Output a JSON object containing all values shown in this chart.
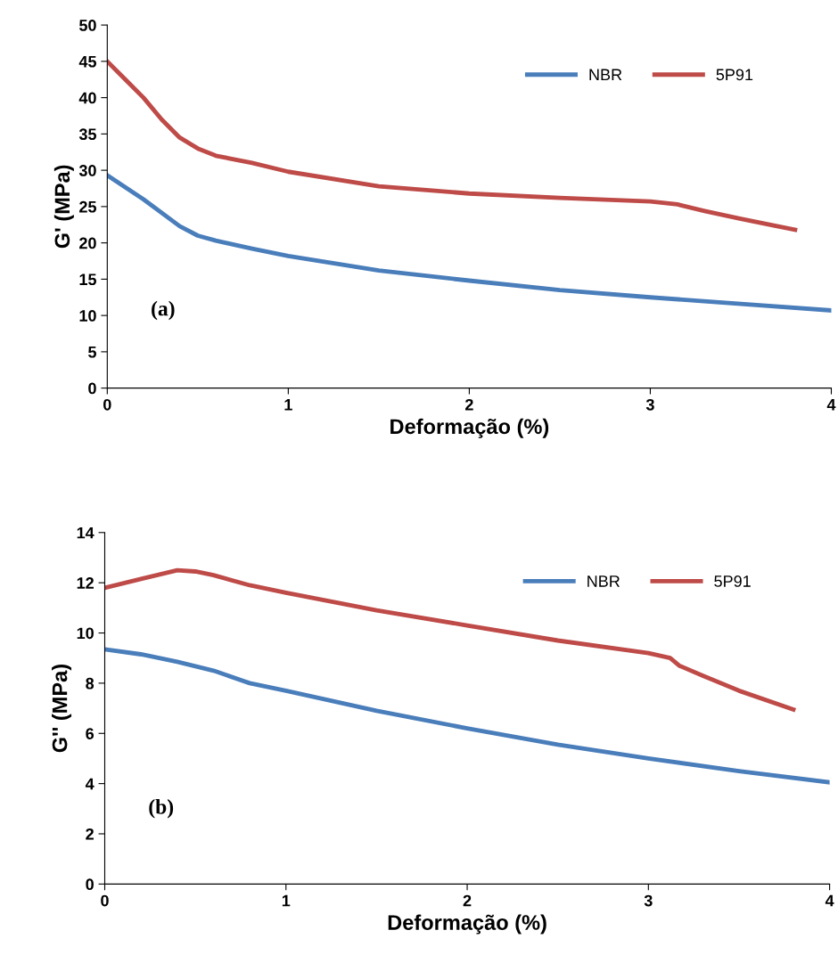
{
  "chart_data": [
    {
      "type": "line",
      "xlabel": "Deformação (%)",
      "ylabel": "G' (MPa)",
      "annotations": [
        "(a)"
      ],
      "xlim": [
        0,
        4
      ],
      "xticks": [
        0,
        1,
        2,
        3,
        4
      ],
      "ylim": [
        0,
        50
      ],
      "yticks": [
        0,
        5,
        10,
        15,
        20,
        25,
        30,
        35,
        40,
        45,
        50
      ],
      "grid": false,
      "legend": "top right",
      "marker": "none",
      "line_style": "solid",
      "series": [
        {
          "name": "NBR",
          "color": "#4a7ebb",
          "x": [
            0,
            0.2,
            0.4,
            0.5,
            0.6,
            0.8,
            1,
            1.5,
            2,
            2.5,
            3,
            3.5,
            4
          ],
          "values": [
            29.3,
            26,
            22.3,
            21,
            20.3,
            19.2,
            18.2,
            16.2,
            14.8,
            13.5,
            12.5,
            11.6,
            10.7
          ]
        },
        {
          "name": "5P91",
          "color": "#be4b48",
          "x": [
            0,
            0.1,
            0.2,
            0.3,
            0.4,
            0.5,
            0.6,
            0.8,
            1,
            1.5,
            2,
            2.5,
            3,
            3.15,
            3.3,
            3.5,
            3.8
          ],
          "values": [
            45,
            42.5,
            40,
            37,
            34.5,
            33,
            32,
            31,
            29.8,
            27.8,
            26.8,
            26.2,
            25.7,
            25.3,
            24.4,
            23.3,
            21.8
          ]
        }
      ]
    },
    {
      "type": "line",
      "xlabel": "Deformação (%)",
      "ylabel": "G'' (MPa)",
      "annotations": [
        "(b)"
      ],
      "xlim": [
        0,
        4
      ],
      "xticks": [
        0,
        1,
        2,
        3,
        4
      ],
      "ylim": [
        0,
        14
      ],
      "yticks": [
        0,
        2,
        4,
        6,
        8,
        10,
        12,
        14
      ],
      "grid": false,
      "legend": "top right",
      "marker": "none",
      "line_style": "solid",
      "series": [
        {
          "name": "NBR",
          "color": "#4a7ebb",
          "x": [
            0,
            0.2,
            0.4,
            0.6,
            0.8,
            1,
            1.5,
            2,
            2.5,
            3,
            3.5,
            4
          ],
          "values": [
            9.35,
            9.15,
            8.85,
            8.5,
            8.0,
            7.7,
            6.9,
            6.2,
            5.55,
            5.0,
            4.5,
            4.05
          ]
        },
        {
          "name": "5P91",
          "color": "#be4b48",
          "x": [
            0,
            0.2,
            0.4,
            0.5,
            0.6,
            0.8,
            1,
            1.5,
            2,
            2.5,
            3,
            3.12,
            3.17,
            3.3,
            3.5,
            3.8
          ],
          "values": [
            11.8,
            12.15,
            12.5,
            12.45,
            12.3,
            11.9,
            11.6,
            10.9,
            10.3,
            9.7,
            9.2,
            9.0,
            8.7,
            8.3,
            7.7,
            6.95
          ]
        }
      ]
    }
  ]
}
